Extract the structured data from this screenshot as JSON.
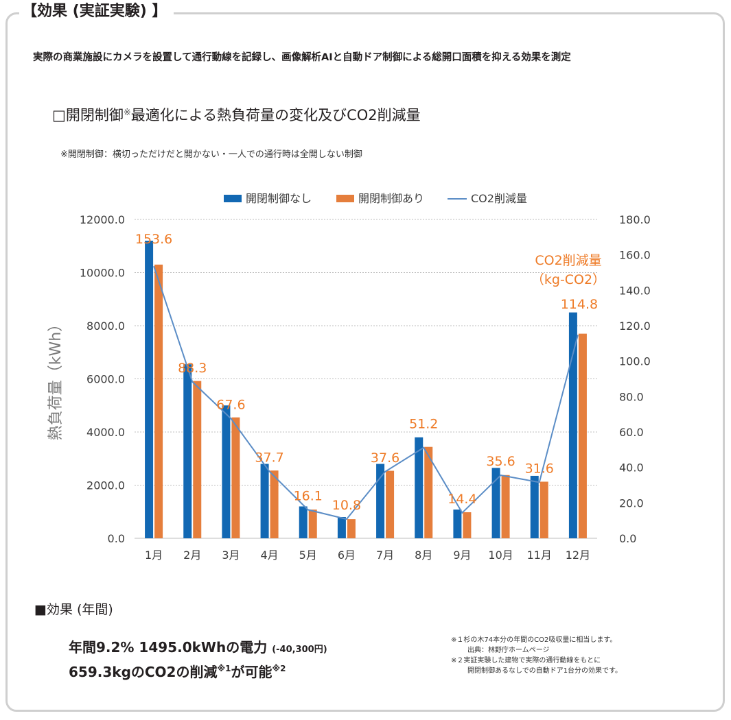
{
  "header": {
    "title": "【効果 (実証実験) 】",
    "description": "実際の商業施設にカメラを設置して通行動線を記録し、画像解析AIと自動ドア制御による総開口面積を抑える効果を測定"
  },
  "chart_section": {
    "title_prefix": "□開閉制御",
    "title_mark": "※",
    "title_suffix": "最適化による熱負荷量の変化及びCO2削減量",
    "note": "※開閉制御：横切っただけだと開かない・一人での通行時は全開しない制御"
  },
  "colors": {
    "bar_without": "#1268b3",
    "bar_with": "#e57e3c",
    "line": "#5b8dc6",
    "label": "#ee7b27",
    "axis_text": "#3d3d3d"
  },
  "chart_data": {
    "type": "bar",
    "categories": [
      "1月",
      "2月",
      "3月",
      "4月",
      "5月",
      "6月",
      "7月",
      "8月",
      "9月",
      "10月",
      "11月",
      "12月"
    ],
    "series": [
      {
        "name": "開閉制御なし",
        "kind": "bar",
        "axis": "left",
        "values": [
          11200,
          6550,
          5000,
          2800,
          1200,
          800,
          2800,
          3800,
          1080,
          2650,
          2350,
          8500
        ]
      },
      {
        "name": "開閉制御あり",
        "kind": "bar",
        "axis": "left",
        "values": [
          10300,
          5920,
          4550,
          2550,
          1080,
          720,
          2540,
          3440,
          980,
          2380,
          2130,
          7700
        ]
      },
      {
        "name": "CO2削減量",
        "kind": "line",
        "axis": "right",
        "values": [
          153.6,
          88.3,
          67.6,
          37.7,
          16.1,
          10.8,
          37.6,
          51.2,
          14.4,
          35.6,
          31.6,
          114.8
        ]
      }
    ],
    "data_labels": [
      "153.6",
      "88.3",
      "67.6",
      "37.7",
      "16.1",
      "10.8",
      "37.6",
      "51.2",
      "14.4",
      "35.6",
      "31.6",
      "114.8"
    ],
    "ylabel": "熱負荷量（kWh）",
    "y2label_line1": "CO2削減量",
    "y2label_line2": "（kg-CO2）",
    "ylim": [
      0,
      12000
    ],
    "y2lim": [
      0,
      180
    ],
    "yticks": [
      "0.0",
      "2000.0",
      "4000.0",
      "6000.0",
      "8000.0",
      "10000.0",
      "12000.0"
    ],
    "y2ticks": [
      "0.0",
      "20.0",
      "40.0",
      "60.0",
      "80.0",
      "100.0",
      "120.0",
      "140.0",
      "160.0",
      "180.0"
    ],
    "grid": true,
    "legend_position": "top-center"
  },
  "effect": {
    "heading": "■効果 (年間)",
    "line1_main": "年間9.2% 1495.0kWhの電力",
    "line1_small": "(-40,300円)",
    "line2_a": "659.3kgのCO2の削減",
    "line2_sup1": "※1",
    "line2_b": "が可能",
    "line2_sup2": "※2"
  },
  "notes": {
    "n1": "※１杉の木74本分の年間のCO2吸収量に相当します。",
    "n1_source": "出典：林野庁ホームページ",
    "n2": "※２実証実験した建物で実際の通行動線をもとに",
    "n2_cont": "開閉制御あるなしでの自動ドア1台分の効果です。"
  }
}
